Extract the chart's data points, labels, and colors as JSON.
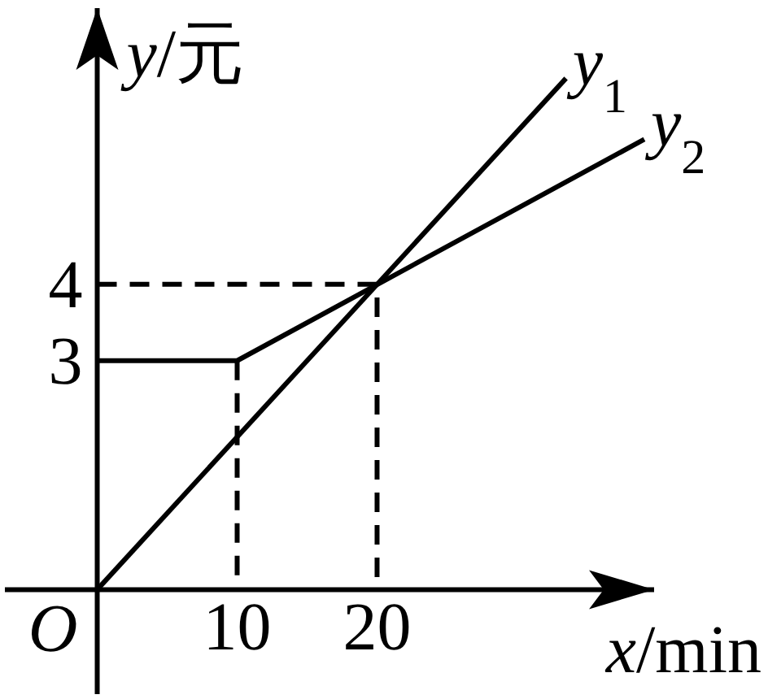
{
  "chart_data": {
    "type": "line",
    "xlabel": "x/min",
    "ylabel": "y/元",
    "xlim": [
      -6.6,
      39.8
    ],
    "ylim": [
      -1.37,
      7.62
    ],
    "xticks": [
      10,
      20
    ],
    "yticks": [
      3,
      4
    ],
    "legend": false,
    "series": [
      {
        "name": "y$_{1}$",
        "color": "#000000",
        "x": [
          0,
          33.5
        ],
        "values": [
          0,
          6.7
        ]
      },
      {
        "name": "y$_{2}$",
        "color": "#000000",
        "x": [
          0,
          10,
          39.1
        ],
        "values": [
          3,
          3,
          5.9
        ]
      },
      {
        "color": "#000000",
        "x": [
          0,
          20,
          20
        ],
        "values": [
          4,
          4,
          0
        ],
        "line_style": "dashed"
      },
      {
        "color": "#000000",
        "x": [
          10,
          10
        ],
        "values": [
          3,
          0
        ],
        "line_style": "dashed"
      }
    ],
    "annotations": [
      {
        "text": "O",
        "x": 0,
        "y": 0
      }
    ]
  }
}
